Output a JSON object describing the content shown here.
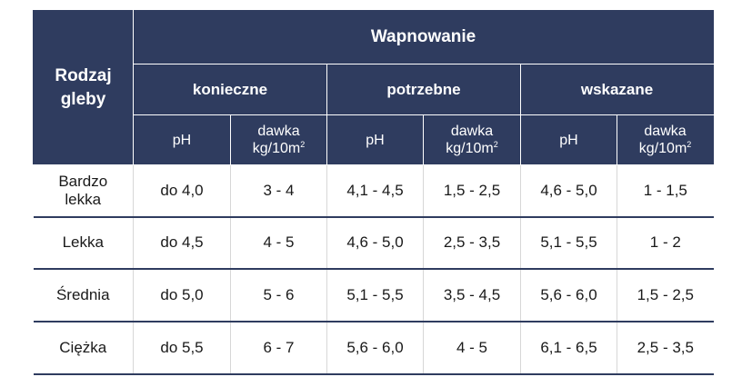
{
  "header": {
    "soil_type": "Rodzaj gleby",
    "group_title": "Wapnowanie",
    "categories": [
      "konieczne",
      "potrzebne",
      "wskazane"
    ],
    "ph_label": "pH",
    "dose_label": "dawka",
    "dose_unit": "kg/10m",
    "dose_unit_sup": "2"
  },
  "rows": [
    {
      "soil": "Bardzo lekka",
      "values": [
        "do 4,0",
        "3 - 4",
        "4,1 - 4,5",
        "1,5 - 2,5",
        "4,6 - 5,0",
        "1 - 1,5"
      ]
    },
    {
      "soil": "Lekka",
      "values": [
        "do 4,5",
        "4 - 5",
        "4,6 - 5,0",
        "2,5 - 3,5",
        "5,1 - 5,5",
        "1 - 2"
      ]
    },
    {
      "soil": "Średnia",
      "values": [
        "do 5,0",
        "5 - 6",
        "5,1 - 5,5",
        "3,5 - 4,5",
        "5,6 - 6,0",
        "1,5 - 2,5"
      ]
    },
    {
      "soil": "Ciężka",
      "values": [
        "do 5,5",
        "6 - 7",
        "5,6 - 6,0",
        "4 - 5",
        "6,1 - 6,5",
        "2,5 - 3,5"
      ]
    }
  ]
}
